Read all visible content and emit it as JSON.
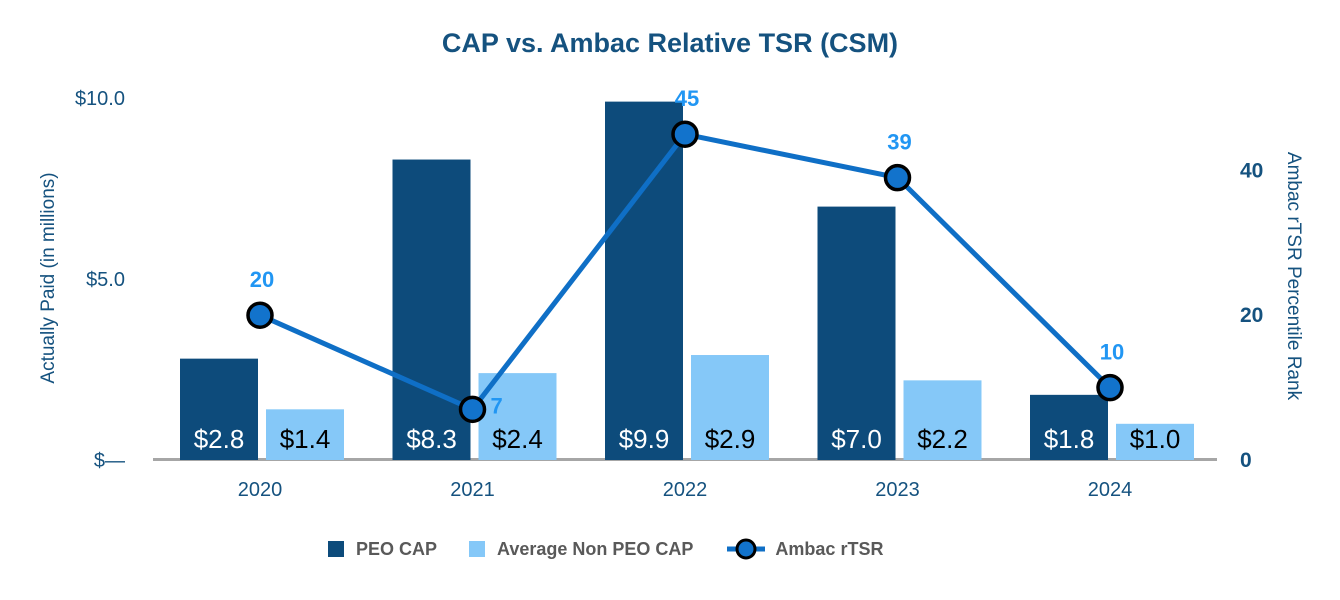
{
  "title": "CAP vs. Ambac Relative TSR (CSM)",
  "chart_data": [
    {
      "type": "bar",
      "categories": [
        "2020",
        "2021",
        "2022",
        "2023",
        "2024"
      ],
      "series": [
        {
          "name": "PEO CAP",
          "values": [
            2.8,
            8.3,
            9.9,
            7.0,
            1.8
          ],
          "labels": [
            "$2.8",
            "$8.3",
            "$9.9",
            "$7.0",
            "$1.8"
          ],
          "color": "#0D4B7B",
          "label_color": "#FFFFFF"
        },
        {
          "name": "Average Non PEO CAP",
          "values": [
            1.4,
            2.4,
            2.9,
            2.2,
            1.0
          ],
          "labels": [
            "$1.4",
            "$2.4",
            "$2.9",
            "$2.2",
            "$1.0"
          ],
          "color": "#85C8F8",
          "label_color": "#000000"
        }
      ],
      "ylabel": "Actually Paid (in millions)",
      "ylim": [
        0,
        10
      ],
      "yticks": [
        {
          "value": 0,
          "label": "$—"
        },
        {
          "value": 5,
          "label": "$5.0"
        },
        {
          "value": 10,
          "label": "$10.0"
        }
      ],
      "grid": false,
      "legend_position": "bottom"
    },
    {
      "type": "line",
      "name": "Ambac rTSR",
      "categories": [
        "2020",
        "2021",
        "2022",
        "2023",
        "2024"
      ],
      "values": [
        20,
        7,
        45,
        39,
        10
      ],
      "point_labels": [
        "20",
        "7",
        "45",
        "39",
        "10"
      ],
      "label_positions": [
        "above",
        "right",
        "above",
        "above",
        "above"
      ],
      "ylabel": "Ambac rTSR Percentile Rank",
      "ylim": [
        0,
        50
      ],
      "yticks": [
        {
          "value": 0,
          "label": "0"
        },
        {
          "value": 20,
          "label": "20"
        },
        {
          "value": 40,
          "label": "40"
        }
      ],
      "color": "#0F6FC6",
      "marker_fill": "#1273CC",
      "marker_stroke": "#000000",
      "label_color": "#2196F3"
    }
  ],
  "legend": {
    "items": [
      {
        "label": "PEO CAP",
        "swatch": "square",
        "color": "#0D4B7B"
      },
      {
        "label": "Average Non PEO CAP",
        "swatch": "square",
        "color": "#85C8F8"
      },
      {
        "label": "Ambac rTSR",
        "swatch": "line-marker",
        "color": "#0F6FC6"
      }
    ]
  },
  "colors": {
    "navy_text": "#15527F",
    "legend_text": "#595959",
    "axis_line": "#A6A6A6",
    "background": "#FFFFFF"
  }
}
